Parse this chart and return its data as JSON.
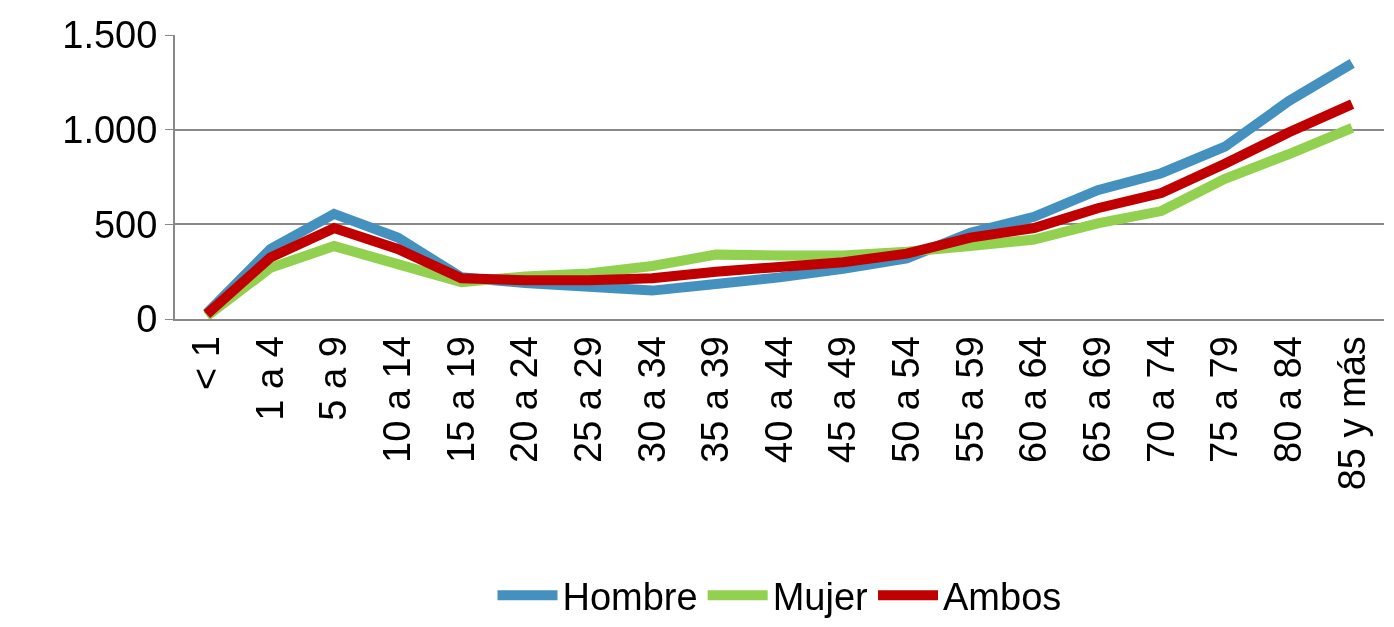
{
  "chart_data": {
    "type": "line",
    "categories": [
      "< 1",
      "1 a 4",
      "5 a 9",
      "10 a 14",
      "15 a 19",
      "20 a 24",
      "25 a 29",
      "30 a 34",
      "35 a 39",
      "40 a 44",
      "45 a 49",
      "50 a 54",
      "55 a 59",
      "60 a 64",
      "65 a 69",
      "70 a 74",
      "75 a 79",
      "80 a 84",
      "85 y más"
    ],
    "series": [
      {
        "name": "Hombre",
        "color": "#4491c0",
        "values": [
          30,
          370,
          555,
          430,
          220,
          190,
          170,
          150,
          185,
          220,
          265,
          320,
          455,
          540,
          680,
          770,
          910,
          1150,
          1350
        ]
      },
      {
        "name": "Mujer",
        "color": "#92d050",
        "values": [
          15,
          270,
          385,
          290,
          195,
          225,
          240,
          280,
          340,
          335,
          335,
          355,
          385,
          420,
          505,
          570,
          740,
          870,
          1010
        ]
      },
      {
        "name": "Ambos",
        "color": "#c00000",
        "values": [
          25,
          325,
          480,
          370,
          215,
          205,
          205,
          215,
          250,
          275,
          300,
          345,
          430,
          480,
          585,
          665,
          820,
          985,
          1135
        ]
      }
    ],
    "ylim": [
      0,
      1500
    ],
    "yticks": [
      0,
      {
        "value": 500,
        "label": "500"
      },
      {
        "value": 1000,
        "label": "1.000"
      },
      {
        "value": 1500,
        "label": "1.500"
      }
    ],
    "grid": "y",
    "legend": "bottom",
    "marker": "none",
    "line_style": "solid"
  }
}
